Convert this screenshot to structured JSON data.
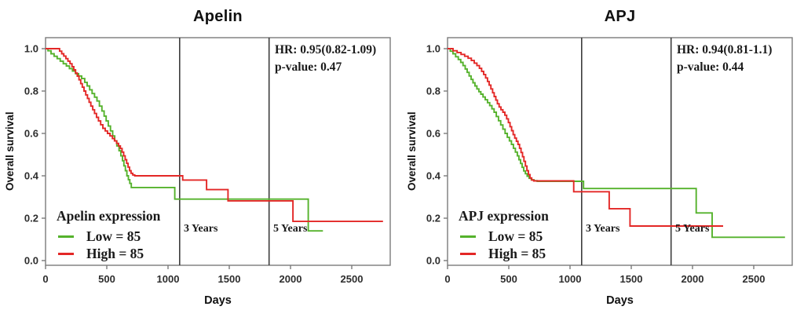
{
  "figure_background": "#ffffff",
  "colors": {
    "low_series": "#55b22c",
    "high_series": "#e32726",
    "year_line": "#3d3d3d",
    "frame": "#7b7b7b",
    "text": "#1a1a1a"
  },
  "chart_data": [
    {
      "type": "line",
      "step": true,
      "title": "Apelin",
      "xlabel": "Days",
      "ylabel": "Overall survival",
      "hr_text": "HR: 0.95(0.82-1.09)",
      "pvalue_text": "p-value: 0.47",
      "legend": {
        "title": "Apelin expression",
        "position": "lower-left",
        "items": [
          {
            "label": "Low = 85",
            "color": "#55b22c"
          },
          {
            "label": "High = 85",
            "color": "#e32726"
          }
        ]
      },
      "xticks": [
        "0",
        "500",
        "1000",
        "1500",
        "2000",
        "2500"
      ],
      "xtick_values": [
        0,
        500,
        1000,
        1500,
        2000,
        2500
      ],
      "yticks": [
        "1.0",
        "0.8",
        "0.6",
        "0.4",
        "0.2",
        "0.0"
      ],
      "ytick_values": [
        1.0,
        0.8,
        0.6,
        0.4,
        0.2,
        0.0
      ],
      "xlim": [
        0,
        2815
      ],
      "ylim": [
        0.0,
        1.0
      ],
      "grid": false,
      "vlines": [
        {
          "x": 1095,
          "label": "3 Years"
        },
        {
          "x": 1825,
          "label": "5 Years"
        }
      ],
      "series": [
        {
          "name": "Low",
          "color": "#55b22c",
          "end_x": 2265,
          "points": [
            [
              0,
              1.0
            ],
            [
              20,
              0.99
            ],
            [
              45,
              0.976
            ],
            [
              70,
              0.964
            ],
            [
              95,
              0.953
            ],
            [
              120,
              0.941
            ],
            [
              145,
              0.929
            ],
            [
              170,
              0.918
            ],
            [
              195,
              0.906
            ],
            [
              220,
              0.894
            ],
            [
              245,
              0.882
            ],
            [
              270,
              0.871
            ],
            [
              295,
              0.859
            ],
            [
              320,
              0.841
            ],
            [
              340,
              0.824
            ],
            [
              360,
              0.806
            ],
            [
              380,
              0.788
            ],
            [
              400,
              0.771
            ],
            [
              420,
              0.753
            ],
            [
              440,
              0.729
            ],
            [
              460,
              0.706
            ],
            [
              478,
              0.682
            ],
            [
              495,
              0.659
            ],
            [
              512,
              0.635
            ],
            [
              530,
              0.612
            ],
            [
              548,
              0.588
            ],
            [
              565,
              0.565
            ],
            [
              582,
              0.541
            ],
            [
              600,
              0.518
            ],
            [
              615,
              0.494
            ],
            [
              628,
              0.471
            ],
            [
              640,
              0.447
            ],
            [
              652,
              0.424
            ],
            [
              664,
              0.4
            ],
            [
              676,
              0.382
            ],
            [
              688,
              0.364
            ],
            [
              700,
              0.345
            ],
            [
              1055,
              0.29
            ],
            [
              2145,
              0.14
            ]
          ]
        },
        {
          "name": "High",
          "color": "#e32726",
          "end_x": 2755,
          "points": [
            [
              0,
              1.0
            ],
            [
              115,
              0.988
            ],
            [
              132,
              0.976
            ],
            [
              149,
              0.965
            ],
            [
              166,
              0.953
            ],
            [
              183,
              0.941
            ],
            [
              200,
              0.929
            ],
            [
              216,
              0.915
            ],
            [
              231,
              0.9
            ],
            [
              245,
              0.885
            ],
            [
              259,
              0.87
            ],
            [
              273,
              0.853
            ],
            [
              287,
              0.835
            ],
            [
              300,
              0.818
            ],
            [
              314,
              0.8
            ],
            [
              328,
              0.782
            ],
            [
              342,
              0.765
            ],
            [
              356,
              0.747
            ],
            [
              370,
              0.729
            ],
            [
              385,
              0.712
            ],
            [
              400,
              0.694
            ],
            [
              416,
              0.676
            ],
            [
              432,
              0.659
            ],
            [
              450,
              0.641
            ],
            [
              468,
              0.624
            ],
            [
              487,
              0.612
            ],
            [
              506,
              0.6
            ],
            [
              526,
              0.588
            ],
            [
              546,
              0.576
            ],
            [
              563,
              0.565
            ],
            [
              580,
              0.553
            ],
            [
              596,
              0.541
            ],
            [
              611,
              0.529
            ],
            [
              625,
              0.512
            ],
            [
              638,
              0.494
            ],
            [
              650,
              0.476
            ],
            [
              662,
              0.459
            ],
            [
              674,
              0.441
            ],
            [
              686,
              0.424
            ],
            [
              698,
              0.412
            ],
            [
              712,
              0.404
            ],
            [
              728,
              0.4
            ],
            [
              1120,
              0.38
            ],
            [
              1315,
              0.335
            ],
            [
              1490,
              0.282
            ],
            [
              2020,
              0.185
            ]
          ]
        }
      ]
    },
    {
      "type": "line",
      "step": true,
      "title": "APJ",
      "xlabel": "Days",
      "ylabel": "Overall survival",
      "hr_text": "HR: 0.94(0.81-1.1)",
      "pvalue_text": "p-value: 0.44",
      "legend": {
        "title": "APJ expression",
        "position": "lower-left",
        "items": [
          {
            "label": "Low = 85",
            "color": "#55b22c"
          },
          {
            "label": "High = 85",
            "color": "#e32726"
          }
        ]
      },
      "xticks": [
        "0",
        "500",
        "1000",
        "1500",
        "2000",
        "2500"
      ],
      "xtick_values": [
        0,
        500,
        1000,
        1500,
        2000,
        2500
      ],
      "yticks": [
        "1.0",
        "0.8",
        "0.6",
        "0.4",
        "0.2",
        "0.0"
      ],
      "ytick_values": [
        1.0,
        0.8,
        0.6,
        0.4,
        0.2,
        0.0
      ],
      "xlim": [
        0,
        2815
      ],
      "ylim": [
        0.0,
        1.0
      ],
      "grid": false,
      "vlines": [
        {
          "x": 1095,
          "label": "3 Years"
        },
        {
          "x": 1825,
          "label": "5 Years"
        }
      ],
      "series": [
        {
          "name": "Low",
          "color": "#55b22c",
          "end_x": 2755,
          "points": [
            [
              0,
              1.0
            ],
            [
              22,
              0.988
            ],
            [
              44,
              0.976
            ],
            [
              66,
              0.962
            ],
            [
              88,
              0.949
            ],
            [
              108,
              0.935
            ],
            [
              126,
              0.92
            ],
            [
              144,
              0.904
            ],
            [
              160,
              0.888
            ],
            [
              176,
              0.871
            ],
            [
              192,
              0.855
            ],
            [
              208,
              0.839
            ],
            [
              224,
              0.824
            ],
            [
              240,
              0.81
            ],
            [
              256,
              0.797
            ],
            [
              272,
              0.785
            ],
            [
              290,
              0.772
            ],
            [
              308,
              0.759
            ],
            [
              326,
              0.745
            ],
            [
              344,
              0.731
            ],
            [
              362,
              0.716
            ],
            [
              380,
              0.7
            ],
            [
              398,
              0.68
            ],
            [
              416,
              0.66
            ],
            [
              434,
              0.64
            ],
            [
              452,
              0.62
            ],
            [
              470,
              0.6
            ],
            [
              488,
              0.582
            ],
            [
              505,
              0.565
            ],
            [
              522,
              0.548
            ],
            [
              538,
              0.53
            ],
            [
              554,
              0.512
            ],
            [
              570,
              0.494
            ],
            [
              583,
              0.476
            ],
            [
              596,
              0.458
            ],
            [
              609,
              0.44
            ],
            [
              622,
              0.423
            ],
            [
              635,
              0.41
            ],
            [
              650,
              0.398
            ],
            [
              666,
              0.388
            ],
            [
              684,
              0.381
            ],
            [
              706,
              0.377
            ],
            [
              732,
              0.374
            ],
            [
              1110,
              0.34
            ],
            [
              2030,
              0.225
            ],
            [
              2160,
              0.11
            ]
          ]
        },
        {
          "name": "High",
          "color": "#e32726",
          "end_x": 2250,
          "points": [
            [
              0,
              1.0
            ],
            [
              45,
              0.99
            ],
            [
              78,
              0.982
            ],
            [
              110,
              0.973
            ],
            [
              140,
              0.964
            ],
            [
              168,
              0.955
            ],
            [
              194,
              0.944
            ],
            [
              218,
              0.932
            ],
            [
              240,
              0.92
            ],
            [
              260,
              0.907
            ],
            [
              278,
              0.893
            ],
            [
              295,
              0.878
            ],
            [
              311,
              0.862
            ],
            [
              326,
              0.845
            ],
            [
              340,
              0.828
            ],
            [
              354,
              0.81
            ],
            [
              368,
              0.792
            ],
            [
              381,
              0.774
            ],
            [
              394,
              0.757
            ],
            [
              407,
              0.74
            ],
            [
              421,
              0.725
            ],
            [
              436,
              0.712
            ],
            [
              452,
              0.7
            ],
            [
              468,
              0.686
            ],
            [
              483,
              0.669
            ],
            [
              497,
              0.651
            ],
            [
              510,
              0.632
            ],
            [
              523,
              0.613
            ],
            [
              536,
              0.594
            ],
            [
              549,
              0.578
            ],
            [
              562,
              0.563
            ],
            [
              575,
              0.548
            ],
            [
              588,
              0.53
            ],
            [
              600,
              0.51
            ],
            [
              612,
              0.49
            ],
            [
              624,
              0.468
            ],
            [
              636,
              0.446
            ],
            [
              648,
              0.424
            ],
            [
              660,
              0.406
            ],
            [
              673,
              0.39
            ],
            [
              687,
              0.38
            ],
            [
              704,
              0.376
            ],
            [
              1030,
              0.325
            ],
            [
              1320,
              0.245
            ],
            [
              1490,
              0.163
            ]
          ]
        }
      ]
    }
  ]
}
